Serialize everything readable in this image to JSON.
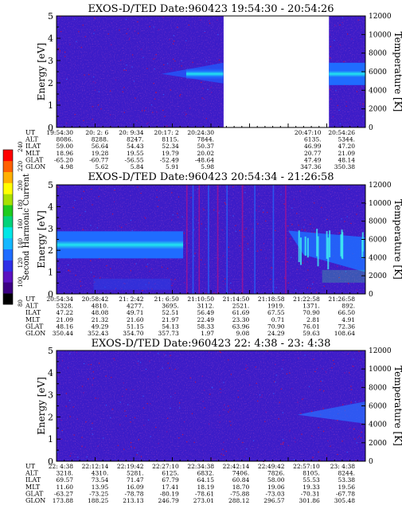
{
  "colorbar": {
    "label": "Second Harmonic Current",
    "ticks": [
      "80",
      "100",
      "120",
      "140",
      "160",
      "180",
      "200",
      "220",
      "240"
    ],
    "range": [
      80,
      240
    ],
    "colors": [
      "#000000",
      "#3b0082",
      "#5a12c0",
      "#2f2fe6",
      "#1f6cff",
      "#14b8ff",
      "#00e6e6",
      "#00d27a",
      "#1ecb1e",
      "#a8e000",
      "#ffff00",
      "#ffb000",
      "#ff6000",
      "#ff0000"
    ]
  },
  "chart_data": [
    {
      "type": "heatmap",
      "title": "EXOS-D/TED   Date:960423  19:54:30 - 20:54:26",
      "ylabel": "Energy [eV]",
      "y2label": "Temperature [K]",
      "ylim": [
        0,
        5
      ],
      "y2lim": [
        0,
        12000
      ],
      "yticks": [
        "0",
        "1",
        "2",
        "3",
        "4",
        "5"
      ],
      "y2ticks": [
        "0",
        "2000",
        "4000",
        "6000",
        "8000",
        "10000",
        "12000"
      ],
      "data_gap": [
        "20:24:30",
        "20:47:10"
      ],
      "band": {
        "energy_center_eV": 2.4,
        "note": ""
      },
      "row_labels": [
        "UT",
        "ALT",
        "ILAT",
        "MLT",
        "GLAT",
        "GLON"
      ],
      "columns": [
        {
          "UT": "19:54:30",
          "ALT": "8086.",
          "ILAT": "59.00",
          "MLT": "18.96",
          "GLAT": "-65.20",
          "GLON": "4.98"
        },
        {
          "UT": "20: 2: 6",
          "ALT": "8288.",
          "ILAT": "56.64",
          "MLT": "19.28",
          "GLAT": "-60.77",
          "GLON": "5.62"
        },
        {
          "UT": "20: 9:34",
          "ALT": "8247.",
          "ILAT": "54.43",
          "MLT": "19.55",
          "GLAT": "-56.55",
          "GLON": "5.84"
        },
        {
          "UT": "20:17: 2",
          "ALT": "8115.",
          "ILAT": "52.34",
          "MLT": "19.79",
          "GLAT": "-52.49",
          "GLON": "5.91"
        },
        {
          "UT": "20:24:30",
          "ALT": "7844.",
          "ILAT": "50.37",
          "MLT": "20.02",
          "GLAT": "-48.64",
          "GLON": "5.98"
        },
        {
          "UT": "20:47:10",
          "ALT": "6135.",
          "ILAT": "46.99",
          "MLT": "20.77",
          "GLAT": "47.49",
          "GLON": "347.36"
        },
        {
          "UT": "20:54:26",
          "ALT": "5344.",
          "ILAT": "47.20",
          "MLT": "21.09",
          "GLAT": "48.14",
          "GLON": "350.38"
        }
      ]
    },
    {
      "type": "heatmap",
      "title": "EXOS-D/TED   Date:960423  20:54:34 - 21:26:58",
      "ylabel": "Energy [eV]",
      "y2label": "Temperature [K]",
      "ylim": [
        0,
        5
      ],
      "y2lim": [
        0,
        12000
      ],
      "yticks": [
        "0",
        "1",
        "2",
        "3",
        "4",
        "5"
      ],
      "y2ticks": [
        "0",
        "2000",
        "4000",
        "6000",
        "8000",
        "10000",
        "12000"
      ],
      "band": {
        "energy_center_eV": 2.2
      },
      "row_labels": [
        "UT",
        "ALT",
        "ILAT",
        "MLT",
        "GLAT",
        "GLON"
      ],
      "columns": [
        {
          "UT": "20:54:34",
          "ALT": "5328.",
          "ILAT": "47.22",
          "MLT": "21.09",
          "GLAT": "48.16",
          "GLON": "350.44"
        },
        {
          "UT": "20:58:42",
          "ALT": "4810.",
          "ILAT": "48.08",
          "MLT": "21.32",
          "GLAT": "49.29",
          "GLON": "352.43"
        },
        {
          "UT": "21: 2:42",
          "ALT": "4277.",
          "ILAT": "49.71",
          "MLT": "21.60",
          "GLAT": "51.15",
          "GLON": "354.70"
        },
        {
          "UT": "21: 6:50",
          "ALT": "3695.",
          "ILAT": "52.51",
          "MLT": "21.97",
          "GLAT": "54.13",
          "GLON": "357.73"
        },
        {
          "UT": "21:10:50",
          "ALT": "3112.",
          "ILAT": "56.49",
          "MLT": "22.49",
          "GLAT": "58.33",
          "GLON": "1.97"
        },
        {
          "UT": "21:14:50",
          "ALT": "2521.",
          "ILAT": "61.69",
          "MLT": "23.30",
          "GLAT": "63.96",
          "GLON": "9.08"
        },
        {
          "UT": "21:18:58",
          "ALT": "1919.",
          "ILAT": "67.55",
          "MLT": "0.71",
          "GLAT": "70.90",
          "GLON": "24.29"
        },
        {
          "UT": "21:22:58",
          "ALT": "1371.",
          "ILAT": "70.90",
          "MLT": "2.81",
          "GLAT": "76.01",
          "GLON": "59.63"
        },
        {
          "UT": "21:26:58",
          "ALT": "892.",
          "ILAT": "66.50",
          "MLT": "4.91",
          "GLAT": "72.36",
          "GLON": "108.64"
        }
      ]
    },
    {
      "type": "heatmap",
      "title": "EXOS-D/TED   Date:960423  22: 4:38 - 23: 4:38",
      "ylabel": "Energy [eV]",
      "y2label": "Temperature [K]",
      "ylim": [
        0,
        5
      ],
      "y2lim": [
        0,
        12000
      ],
      "yticks": [
        "0",
        "1",
        "2",
        "3",
        "4",
        "5"
      ],
      "y2ticks": [
        "0",
        "2000",
        "4000",
        "6000",
        "8000",
        "10000",
        "12000"
      ],
      "row_labels": [
        "UT",
        "ALT",
        "ILAT",
        "MLT",
        "GLAT",
        "GLON"
      ],
      "columns": [
        {
          "UT": "22: 4:38",
          "ALT": "3218.",
          "ILAT": "69.57",
          "MLT": "11.60",
          "GLAT": "-63.27",
          "GLON": "173.88"
        },
        {
          "UT": "22:12:14",
          "ALT": "4310.",
          "ILAT": "73.54",
          "MLT": "13.95",
          "GLAT": "-73.25",
          "GLON": "188.25"
        },
        {
          "UT": "22:19:42",
          "ALT": "5281.",
          "ILAT": "71.47",
          "MLT": "16.09",
          "GLAT": "-78.78",
          "GLON": "213.13"
        },
        {
          "UT": "22:27:10",
          "ALT": "6125.",
          "ILAT": "67.79",
          "MLT": "17.41",
          "GLAT": "-80.19",
          "GLON": "246.79"
        },
        {
          "UT": "22:34:38",
          "ALT": "6832.",
          "ILAT": "64.15",
          "MLT": "18.19",
          "GLAT": "-78.61",
          "GLON": "273.01"
        },
        {
          "UT": "22:42:14",
          "ALT": "7406.",
          "ILAT": "60.84",
          "MLT": "18.70",
          "GLAT": "-75.88",
          "GLON": "288.12"
        },
        {
          "UT": "22:49:42",
          "ALT": "7826.",
          "ILAT": "58.00",
          "MLT": "19.06",
          "GLAT": "-73.03",
          "GLON": "296.57"
        },
        {
          "UT": "22:57:10",
          "ALT": "8105.",
          "ILAT": "55.53",
          "MLT": "19.33",
          "GLAT": "-70.31",
          "GLON": "301.86"
        },
        {
          "UT": "23: 4:38",
          "ALT": "8244.",
          "ILAT": "53.38",
          "MLT": "19.56",
          "GLAT": "-67.78",
          "GLON": "305.48"
        }
      ]
    }
  ]
}
